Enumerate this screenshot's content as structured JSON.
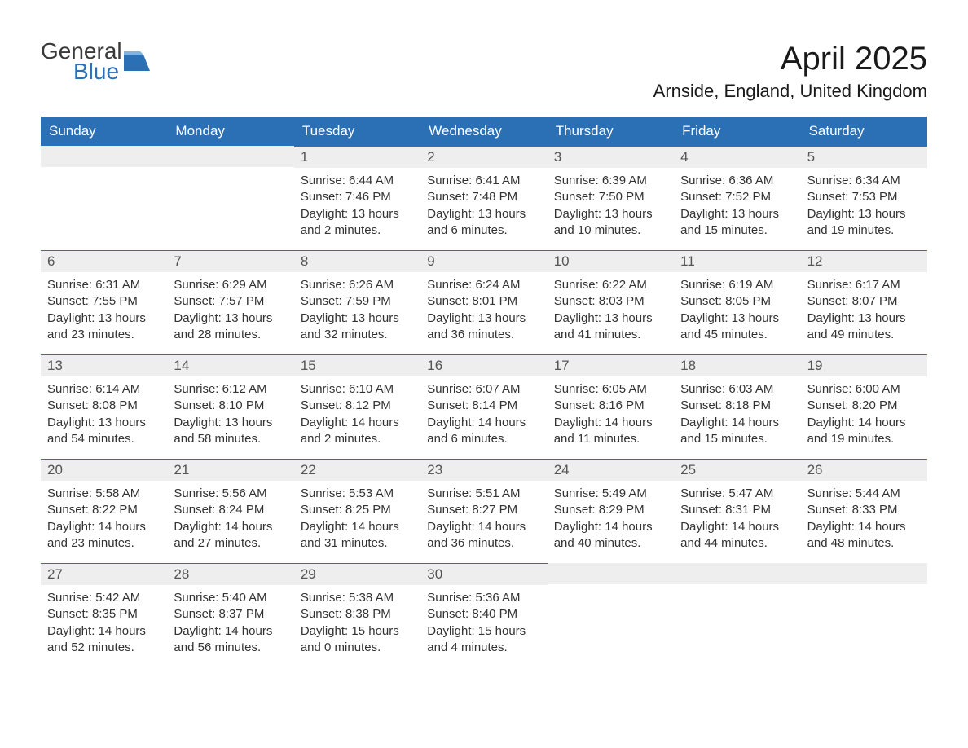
{
  "logo": {
    "line1": "General",
    "line2": "Blue"
  },
  "title": "April 2025",
  "location": "Arnside, England, United Kingdom",
  "colors": {
    "header_bg": "#2b6fb5",
    "header_text": "#ffffff",
    "daynum_bg": "#eeeeee",
    "cell_border": "#2b6fb5",
    "text": "#333333",
    "logo_blue": "#2b6fb5"
  },
  "day_names": [
    "Sunday",
    "Monday",
    "Tuesday",
    "Wednesday",
    "Thursday",
    "Friday",
    "Saturday"
  ],
  "weeks": [
    [
      null,
      null,
      {
        "n": "1",
        "sunrise": "6:44 AM",
        "sunset": "7:46 PM",
        "daylight": "13 hours and 2 minutes."
      },
      {
        "n": "2",
        "sunrise": "6:41 AM",
        "sunset": "7:48 PM",
        "daylight": "13 hours and 6 minutes."
      },
      {
        "n": "3",
        "sunrise": "6:39 AM",
        "sunset": "7:50 PM",
        "daylight": "13 hours and 10 minutes."
      },
      {
        "n": "4",
        "sunrise": "6:36 AM",
        "sunset": "7:52 PM",
        "daylight": "13 hours and 15 minutes."
      },
      {
        "n": "5",
        "sunrise": "6:34 AM",
        "sunset": "7:53 PM",
        "daylight": "13 hours and 19 minutes."
      }
    ],
    [
      {
        "n": "6",
        "sunrise": "6:31 AM",
        "sunset": "7:55 PM",
        "daylight": "13 hours and 23 minutes."
      },
      {
        "n": "7",
        "sunrise": "6:29 AM",
        "sunset": "7:57 PM",
        "daylight": "13 hours and 28 minutes."
      },
      {
        "n": "8",
        "sunrise": "6:26 AM",
        "sunset": "7:59 PM",
        "daylight": "13 hours and 32 minutes."
      },
      {
        "n": "9",
        "sunrise": "6:24 AM",
        "sunset": "8:01 PM",
        "daylight": "13 hours and 36 minutes."
      },
      {
        "n": "10",
        "sunrise": "6:22 AM",
        "sunset": "8:03 PM",
        "daylight": "13 hours and 41 minutes."
      },
      {
        "n": "11",
        "sunrise": "6:19 AM",
        "sunset": "8:05 PM",
        "daylight": "13 hours and 45 minutes."
      },
      {
        "n": "12",
        "sunrise": "6:17 AM",
        "sunset": "8:07 PM",
        "daylight": "13 hours and 49 minutes."
      }
    ],
    [
      {
        "n": "13",
        "sunrise": "6:14 AM",
        "sunset": "8:08 PM",
        "daylight": "13 hours and 54 minutes."
      },
      {
        "n": "14",
        "sunrise": "6:12 AM",
        "sunset": "8:10 PM",
        "daylight": "13 hours and 58 minutes."
      },
      {
        "n": "15",
        "sunrise": "6:10 AM",
        "sunset": "8:12 PM",
        "daylight": "14 hours and 2 minutes."
      },
      {
        "n": "16",
        "sunrise": "6:07 AM",
        "sunset": "8:14 PM",
        "daylight": "14 hours and 6 minutes."
      },
      {
        "n": "17",
        "sunrise": "6:05 AM",
        "sunset": "8:16 PM",
        "daylight": "14 hours and 11 minutes."
      },
      {
        "n": "18",
        "sunrise": "6:03 AM",
        "sunset": "8:18 PM",
        "daylight": "14 hours and 15 minutes."
      },
      {
        "n": "19",
        "sunrise": "6:00 AM",
        "sunset": "8:20 PM",
        "daylight": "14 hours and 19 minutes."
      }
    ],
    [
      {
        "n": "20",
        "sunrise": "5:58 AM",
        "sunset": "8:22 PM",
        "daylight": "14 hours and 23 minutes."
      },
      {
        "n": "21",
        "sunrise": "5:56 AM",
        "sunset": "8:24 PM",
        "daylight": "14 hours and 27 minutes."
      },
      {
        "n": "22",
        "sunrise": "5:53 AM",
        "sunset": "8:25 PM",
        "daylight": "14 hours and 31 minutes."
      },
      {
        "n": "23",
        "sunrise": "5:51 AM",
        "sunset": "8:27 PM",
        "daylight": "14 hours and 36 minutes."
      },
      {
        "n": "24",
        "sunrise": "5:49 AM",
        "sunset": "8:29 PM",
        "daylight": "14 hours and 40 minutes."
      },
      {
        "n": "25",
        "sunrise": "5:47 AM",
        "sunset": "8:31 PM",
        "daylight": "14 hours and 44 minutes."
      },
      {
        "n": "26",
        "sunrise": "5:44 AM",
        "sunset": "8:33 PM",
        "daylight": "14 hours and 48 minutes."
      }
    ],
    [
      {
        "n": "27",
        "sunrise": "5:42 AM",
        "sunset": "8:35 PM",
        "daylight": "14 hours and 52 minutes."
      },
      {
        "n": "28",
        "sunrise": "5:40 AM",
        "sunset": "8:37 PM",
        "daylight": "14 hours and 56 minutes."
      },
      {
        "n": "29",
        "sunrise": "5:38 AM",
        "sunset": "8:38 PM",
        "daylight": "15 hours and 0 minutes."
      },
      {
        "n": "30",
        "sunrise": "5:36 AM",
        "sunset": "8:40 PM",
        "daylight": "15 hours and 4 minutes."
      },
      null,
      null,
      null
    ]
  ],
  "labels": {
    "sunrise": "Sunrise:",
    "sunset": "Sunset:",
    "daylight": "Daylight:"
  }
}
